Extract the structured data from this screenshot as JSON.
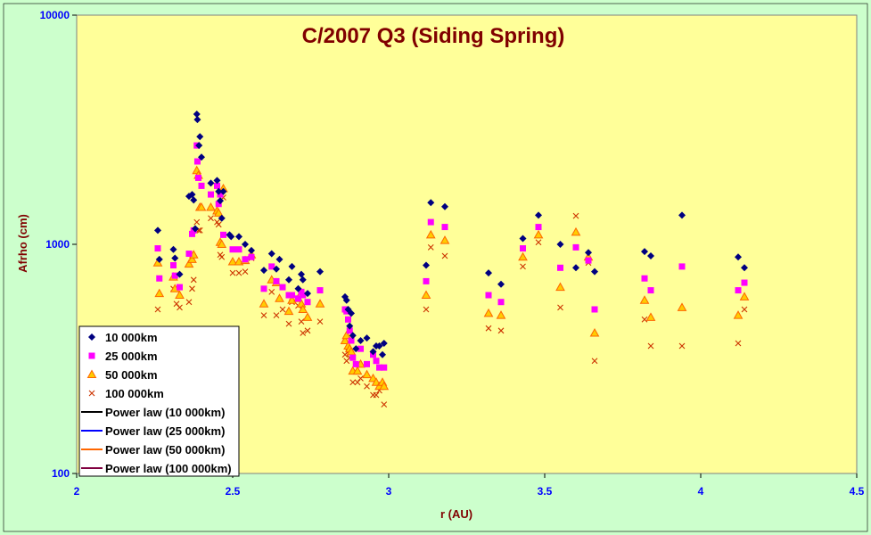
{
  "chart_data": {
    "type": "scatter",
    "title": "C/2007 Q3 (Siding Spring)",
    "xlabel": "r (AU)",
    "ylabel": "Afrho (cm)",
    "xlim": [
      2,
      4.5
    ],
    "ylim": [
      100,
      10000
    ],
    "y_scale": "log",
    "x_ticks": [
      "2",
      "2.5",
      "3",
      "3.5",
      "4",
      "4.5"
    ],
    "y_ticks": [
      "100",
      "1000",
      "10000"
    ],
    "legend_position": "bottom-left",
    "grid": false,
    "colors": {
      "plot_background": "#ffff99",
      "chart_background": "#ccffcc",
      "title": "#800000",
      "tick_labels": "#0000ff"
    },
    "series": [
      {
        "name": "10 000km",
        "marker": "diamond",
        "color": "#000080",
        "points": [
          [
            2.26,
            1150
          ],
          [
            2.265,
            860
          ],
          [
            2.31,
            950
          ],
          [
            2.315,
            870
          ],
          [
            2.33,
            740
          ],
          [
            2.36,
            1620
          ],
          [
            2.37,
            1650
          ],
          [
            2.375,
            1560
          ],
          [
            2.38,
            1170
          ],
          [
            2.385,
            3700
          ],
          [
            2.387,
            3500
          ],
          [
            2.392,
            2700
          ],
          [
            2.395,
            2950
          ],
          [
            2.4,
            2400
          ],
          [
            2.43,
            1850
          ],
          [
            2.45,
            1900
          ],
          [
            2.455,
            1700
          ],
          [
            2.46,
            1550
          ],
          [
            2.465,
            1300
          ],
          [
            2.47,
            1700
          ],
          [
            2.49,
            1100
          ],
          [
            2.495,
            1080
          ],
          [
            2.52,
            1080
          ],
          [
            2.54,
            1000
          ],
          [
            2.56,
            940
          ],
          [
            2.6,
            770
          ],
          [
            2.625,
            910
          ],
          [
            2.64,
            780
          ],
          [
            2.65,
            860
          ],
          [
            2.68,
            700
          ],
          [
            2.69,
            800
          ],
          [
            2.71,
            640
          ],
          [
            2.72,
            740
          ],
          [
            2.725,
            700
          ],
          [
            2.74,
            610
          ],
          [
            2.78,
            760
          ],
          [
            2.86,
            590
          ],
          [
            2.865,
            570
          ],
          [
            2.87,
            520
          ],
          [
            2.875,
            440
          ],
          [
            2.88,
            500
          ],
          [
            2.885,
            400
          ],
          [
            2.895,
            350
          ],
          [
            2.91,
            380
          ],
          [
            2.93,
            390
          ],
          [
            2.95,
            340
          ],
          [
            2.96,
            360
          ],
          [
            2.97,
            360
          ],
          [
            2.98,
            330
          ],
          [
            2.985,
            370
          ],
          [
            3.12,
            810
          ],
          [
            3.135,
            1520
          ],
          [
            3.18,
            1460
          ],
          [
            3.32,
            750
          ],
          [
            3.36,
            670
          ],
          [
            3.43,
            1060
          ],
          [
            3.48,
            1340
          ],
          [
            3.55,
            1000
          ],
          [
            3.6,
            790
          ],
          [
            3.64,
            920
          ],
          [
            3.66,
            760
          ],
          [
            3.82,
            930
          ],
          [
            3.84,
            890
          ],
          [
            3.94,
            1340
          ],
          [
            4.12,
            880
          ],
          [
            4.14,
            790
          ]
        ]
      },
      {
        "name": "25 000km",
        "marker": "square",
        "color": "#ff00ff",
        "points": [
          [
            2.26,
            960
          ],
          [
            2.265,
            710
          ],
          [
            2.31,
            810
          ],
          [
            2.315,
            730
          ],
          [
            2.33,
            650
          ],
          [
            2.36,
            910
          ],
          [
            2.37,
            1110
          ],
          [
            2.375,
            1150
          ],
          [
            2.385,
            2700
          ],
          [
            2.387,
            2300
          ],
          [
            2.39,
            1950
          ],
          [
            2.4,
            1800
          ],
          [
            2.43,
            1650
          ],
          [
            2.45,
            1800
          ],
          [
            2.455,
            1500
          ],
          [
            2.46,
            1650
          ],
          [
            2.47,
            1100
          ],
          [
            2.5,
            950
          ],
          [
            2.52,
            950
          ],
          [
            2.54,
            860
          ],
          [
            2.56,
            880
          ],
          [
            2.6,
            640
          ],
          [
            2.625,
            800
          ],
          [
            2.64,
            690
          ],
          [
            2.66,
            650
          ],
          [
            2.68,
            600
          ],
          [
            2.69,
            600
          ],
          [
            2.71,
            580
          ],
          [
            2.72,
            620
          ],
          [
            2.725,
            600
          ],
          [
            2.74,
            560
          ],
          [
            2.78,
            630
          ],
          [
            2.86,
            520
          ],
          [
            2.865,
            510
          ],
          [
            2.87,
            470
          ],
          [
            2.875,
            420
          ],
          [
            2.88,
            380
          ],
          [
            2.885,
            320
          ],
          [
            2.895,
            300
          ],
          [
            2.91,
            350
          ],
          [
            2.93,
            300
          ],
          [
            2.95,
            330
          ],
          [
            2.96,
            310
          ],
          [
            2.97,
            290
          ],
          [
            2.985,
            290
          ],
          [
            3.12,
            690
          ],
          [
            3.135,
            1250
          ],
          [
            3.18,
            1190
          ],
          [
            3.32,
            600
          ],
          [
            3.36,
            560
          ],
          [
            3.43,
            960
          ],
          [
            3.48,
            1190
          ],
          [
            3.55,
            790
          ],
          [
            3.6,
            970
          ],
          [
            3.64,
            850
          ],
          [
            3.66,
            520
          ],
          [
            3.82,
            710
          ],
          [
            3.84,
            630
          ],
          [
            3.94,
            800
          ],
          [
            4.12,
            630
          ],
          [
            4.14,
            680
          ]
        ]
      },
      {
        "name": "50 000km",
        "marker": "triangle",
        "color": "#ff6600",
        "fill": "#ffcc00",
        "points": [
          [
            2.26,
            830
          ],
          [
            2.265,
            610
          ],
          [
            2.31,
            720
          ],
          [
            2.315,
            640
          ],
          [
            2.33,
            600
          ],
          [
            2.36,
            820
          ],
          [
            2.37,
            860
          ],
          [
            2.375,
            900
          ],
          [
            2.385,
            2100
          ],
          [
            2.39,
            2000
          ],
          [
            2.395,
            1450
          ],
          [
            2.4,
            1450
          ],
          [
            2.43,
            1450
          ],
          [
            2.45,
            1400
          ],
          [
            2.455,
            1370
          ],
          [
            2.46,
            1020
          ],
          [
            2.465,
            1000
          ],
          [
            2.47,
            1750
          ],
          [
            2.5,
            840
          ],
          [
            2.52,
            840
          ],
          [
            2.54,
            850
          ],
          [
            2.56,
            900
          ],
          [
            2.6,
            550
          ],
          [
            2.625,
            700
          ],
          [
            2.64,
            680
          ],
          [
            2.65,
            580
          ],
          [
            2.68,
            510
          ],
          [
            2.69,
            570
          ],
          [
            2.71,
            580
          ],
          [
            2.72,
            550
          ],
          [
            2.725,
            520
          ],
          [
            2.74,
            480
          ],
          [
            2.78,
            550
          ],
          [
            2.86,
            380
          ],
          [
            2.865,
            400
          ],
          [
            2.87,
            360
          ],
          [
            2.875,
            350
          ],
          [
            2.88,
            340
          ],
          [
            2.885,
            280
          ],
          [
            2.9,
            280
          ],
          [
            2.91,
            300
          ],
          [
            2.93,
            270
          ],
          [
            2.95,
            260
          ],
          [
            2.96,
            250
          ],
          [
            2.97,
            240
          ],
          [
            2.98,
            250
          ],
          [
            2.985,
            240
          ],
          [
            3.12,
            600
          ],
          [
            3.135,
            1100
          ],
          [
            3.18,
            1040
          ],
          [
            3.32,
            500
          ],
          [
            3.36,
            490
          ],
          [
            3.43,
            880
          ],
          [
            3.48,
            1100
          ],
          [
            3.55,
            650
          ],
          [
            3.6,
            1130
          ],
          [
            3.64,
            880
          ],
          [
            3.66,
            410
          ],
          [
            3.82,
            570
          ],
          [
            3.84,
            480
          ],
          [
            3.94,
            530
          ],
          [
            4.12,
            490
          ],
          [
            4.14,
            590
          ]
        ]
      },
      {
        "name": "100 000km",
        "marker": "x",
        "color": "#cc3300",
        "points": [
          [
            2.26,
            520
          ],
          [
            2.31,
            640
          ],
          [
            2.32,
            550
          ],
          [
            2.33,
            530
          ],
          [
            2.36,
            560
          ],
          [
            2.37,
            640
          ],
          [
            2.375,
            700
          ],
          [
            2.385,
            1250
          ],
          [
            2.39,
            1150
          ],
          [
            2.395,
            1150
          ],
          [
            2.43,
            1300
          ],
          [
            2.45,
            1250
          ],
          [
            2.455,
            1220
          ],
          [
            2.46,
            900
          ],
          [
            2.465,
            880
          ],
          [
            2.47,
            1600
          ],
          [
            2.5,
            750
          ],
          [
            2.52,
            750
          ],
          [
            2.54,
            760
          ],
          [
            2.56,
            870
          ],
          [
            2.6,
            490
          ],
          [
            2.625,
            620
          ],
          [
            2.64,
            490
          ],
          [
            2.66,
            520
          ],
          [
            2.68,
            450
          ],
          [
            2.69,
            560
          ],
          [
            2.71,
            540
          ],
          [
            2.72,
            460
          ],
          [
            2.725,
            410
          ],
          [
            2.74,
            420
          ],
          [
            2.78,
            460
          ],
          [
            2.86,
            330
          ],
          [
            2.865,
            310
          ],
          [
            2.87,
            340
          ],
          [
            2.875,
            320
          ],
          [
            2.885,
            250
          ],
          [
            2.9,
            250
          ],
          [
            2.91,
            260
          ],
          [
            2.93,
            240
          ],
          [
            2.95,
            220
          ],
          [
            2.96,
            220
          ],
          [
            2.97,
            230
          ],
          [
            2.985,
            200
          ],
          [
            3.12,
            520
          ],
          [
            3.135,
            970
          ],
          [
            3.18,
            890
          ],
          [
            3.32,
            430
          ],
          [
            3.36,
            420
          ],
          [
            3.43,
            800
          ],
          [
            3.48,
            1020
          ],
          [
            3.55,
            530
          ],
          [
            3.6,
            1330
          ],
          [
            3.64,
            830
          ],
          [
            3.66,
            310
          ],
          [
            3.82,
            470
          ],
          [
            3.84,
            360
          ],
          [
            3.94,
            360
          ],
          [
            4.12,
            370
          ],
          [
            4.14,
            520
          ]
        ]
      },
      {
        "name": "Power law (10 000km)",
        "marker": "line",
        "color": "#000000",
        "points": []
      },
      {
        "name": "Power law (25 000km)",
        "marker": "line",
        "color": "#0000ff",
        "points": []
      },
      {
        "name": "Power law (50 000km)",
        "marker": "line",
        "color": "#ff6600",
        "points": []
      },
      {
        "name": "Power law (100 000km)",
        "marker": "line",
        "color": "#800040",
        "points": []
      }
    ]
  }
}
